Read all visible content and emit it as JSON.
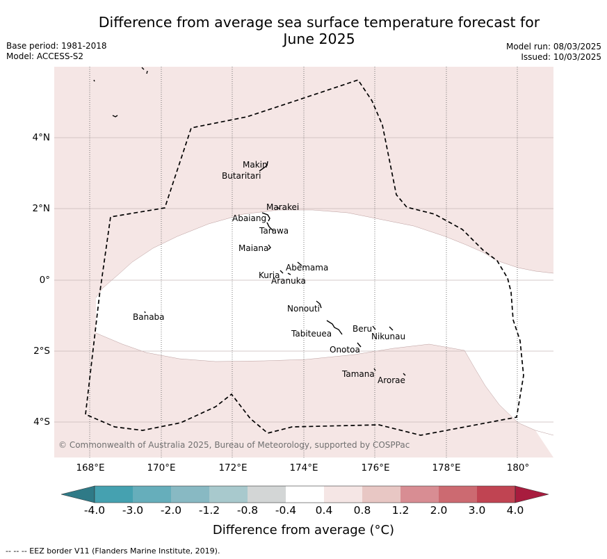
{
  "title": {
    "line1": "Difference from average sea surface temperature forecast for",
    "line2": "June 2025"
  },
  "meta": {
    "base_period": "Base period: 1981-2018",
    "model": "Model: ACCESS-S2",
    "model_run": "Model run: 08/03/2025",
    "issued": "Issued: 10/03/2025"
  },
  "map": {
    "lat_labels": [
      "4°N",
      "2°N",
      "0°",
      "2°S",
      "4°S"
    ],
    "lon_labels": [
      "168°E",
      "170°E",
      "172°E",
      "174°E",
      "176°E",
      "178°E",
      "180°"
    ],
    "places": {
      "makin": "Makin",
      "butaritari": "Butaritari",
      "marakei": "Marakei",
      "abaiang": "Abaiang",
      "tarawa": "Tarawa",
      "maiana": "Maiana",
      "abemama": "Abemama",
      "kuria": "Kuria",
      "aranuka": "Aranuka",
      "nonouti": "Nonouti",
      "banaba": "Banaba",
      "beru": "Beru",
      "tabiteuea": "Tabiteuea",
      "nikunau": "Nikunau",
      "onotoa": "Onotoa",
      "tamana": "Tamana",
      "arorae": "Arorae"
    },
    "copyright": "© Commonwealth of Australia 2025, Bureau of Meteorology, supported by COSPPac"
  },
  "colorbar": {
    "ticks": [
      "-4.0",
      "-3.0",
      "-2.0",
      "-1.2",
      "-0.8",
      "-0.4",
      "0.4",
      "0.8",
      "1.2",
      "2.0",
      "3.0",
      "4.0"
    ],
    "colors": {
      "below_min": "#2f7a87",
      "bins": [
        "#45a1b0",
        "#66aebb",
        "#88b9c3",
        "#a8c9cd",
        "#d3d6d6",
        "#ffffff",
        "#f5e6e5",
        "#e8c7c4",
        "#d88d93",
        "#cc6a71",
        "#c04452"
      ],
      "above_max": "#a81c3e"
    },
    "label": "Difference from average (°C)"
  },
  "footer": "-- -- -- EEZ border V11 (Flanders Marine Institute, 2019)."
}
